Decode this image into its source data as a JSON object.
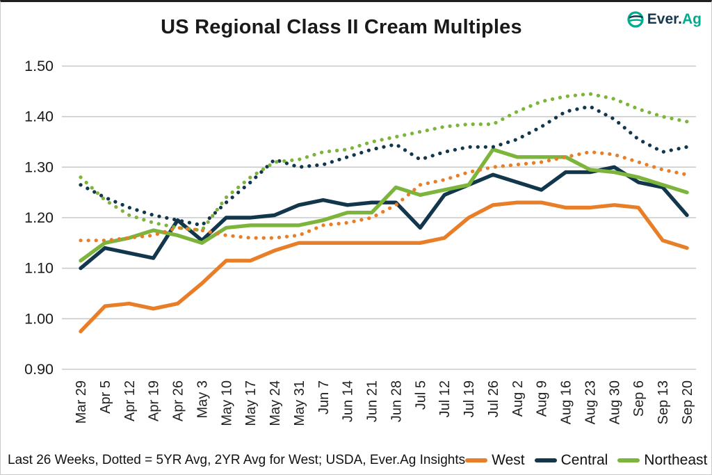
{
  "header": {
    "title": "US Regional Class II Cream Multiples"
  },
  "logo": {
    "text_primary": "Ever.",
    "text_secondary": "Ag"
  },
  "footer": {
    "note": "Last 26 Weeks, Dotted = 5YR Avg, 2YR Avg for West; USDA, Ever.Ag Insights"
  },
  "colors": {
    "west": "#e97e28",
    "central": "#12374d",
    "northeast": "#7db43c",
    "grid": "#c9cbcb",
    "text": "#1a1a1a",
    "logo_navy": "#15384e",
    "logo_teal": "#00ab8e"
  },
  "legend": [
    {
      "label": "West",
      "color": "#e97e28"
    },
    {
      "label": "Central",
      "color": "#12374d"
    },
    {
      "label": "Northeast",
      "color": "#7db43c"
    }
  ],
  "chart_data": {
    "type": "line",
    "title": "US Regional Class II Cream Multiples",
    "xlabel": "",
    "ylabel": "",
    "ylim": [
      0.9,
      1.5
    ],
    "grid": true,
    "legend_position": "bottom-right",
    "ytick_labels": [
      "1.50",
      "1.40",
      "1.30",
      "1.20",
      "1.10",
      "1.00",
      "0.90"
    ],
    "categories": [
      "Mar 29",
      "Apr 5",
      "Apr 12",
      "Apr 19",
      "Apr 26",
      "May 3",
      "May 10",
      "May 17",
      "May 24",
      "May 31",
      "Jun 7",
      "Jun 14",
      "Jun 21",
      "Jun 28",
      "Jul 5",
      "Jul 12",
      "Jul 19",
      "Jul 26",
      "Aug 2",
      "Aug 9",
      "Aug 16",
      "Aug 23",
      "Aug 30",
      "Sep 6",
      "Sep 13",
      "Sep 20"
    ],
    "series": [
      {
        "name": "West",
        "style": "solid",
        "color": "#e97e28",
        "values": [
          0.975,
          1.025,
          1.03,
          1.02,
          1.03,
          1.07,
          1.115,
          1.115,
          1.135,
          1.15,
          1.15,
          1.15,
          1.15,
          1.15,
          1.15,
          1.16,
          1.2,
          1.225,
          1.23,
          1.23,
          1.22,
          1.22,
          1.225,
          1.22,
          1.155,
          1.14
        ]
      },
      {
        "name": "Central",
        "style": "solid",
        "color": "#12374d",
        "values": [
          1.1,
          1.14,
          1.13,
          1.12,
          1.195,
          1.155,
          1.2,
          1.2,
          1.205,
          1.225,
          1.235,
          1.225,
          1.23,
          1.23,
          1.18,
          1.245,
          1.265,
          1.285,
          1.27,
          1.255,
          1.29,
          1.29,
          1.3,
          1.27,
          1.26,
          1.205
        ]
      },
      {
        "name": "Northeast",
        "style": "solid",
        "color": "#7db43c",
        "values": [
          1.115,
          1.15,
          1.16,
          1.175,
          1.165,
          1.15,
          1.18,
          1.185,
          1.185,
          1.185,
          1.195,
          1.21,
          1.21,
          1.26,
          1.245,
          1.255,
          1.265,
          1.335,
          1.32,
          1.32,
          1.32,
          1.295,
          1.29,
          1.28,
          1.265,
          1.25
        ]
      },
      {
        "name": "Central 5YR Avg",
        "style": "dotted",
        "color": "#12374d",
        "values": [
          1.265,
          1.24,
          1.22,
          1.205,
          1.195,
          1.185,
          1.23,
          1.27,
          1.315,
          1.3,
          1.305,
          1.32,
          1.335,
          1.345,
          1.315,
          1.33,
          1.34,
          1.34,
          1.355,
          1.38,
          1.41,
          1.42,
          1.395,
          1.355,
          1.33,
          1.34
        ]
      },
      {
        "name": "Northeast 5YR Avg",
        "style": "dotted",
        "color": "#7db43c",
        "values": [
          1.28,
          1.235,
          1.205,
          1.19,
          1.18,
          1.175,
          1.24,
          1.28,
          1.31,
          1.315,
          1.33,
          1.335,
          1.35,
          1.36,
          1.37,
          1.38,
          1.385,
          1.385,
          1.41,
          1.43,
          1.44,
          1.445,
          1.435,
          1.415,
          1.4,
          1.39
        ]
      },
      {
        "name": "West 2YR Avg",
        "style": "dotted",
        "color": "#e97e28",
        "values": [
          1.155,
          1.155,
          1.16,
          1.165,
          1.18,
          1.175,
          1.165,
          1.16,
          1.16,
          1.165,
          1.185,
          1.19,
          1.2,
          1.225,
          1.265,
          1.275,
          1.29,
          1.3,
          1.305,
          1.31,
          1.32,
          1.33,
          1.325,
          1.31,
          1.295,
          1.285
        ]
      }
    ]
  }
}
